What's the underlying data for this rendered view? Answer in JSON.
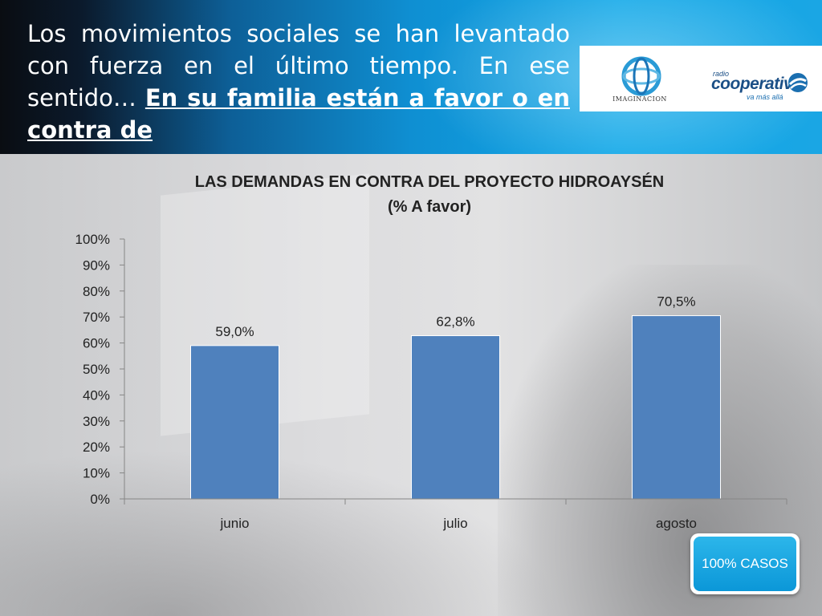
{
  "header": {
    "question_plain": "Los movimientos sociales se han levantado con fuerza en el último tiempo. En ese sentido… ",
    "question_emphasis": "En su familia están a favor o en contra de"
  },
  "logos": {
    "imaginacion": "IMAGINACION",
    "cooperativa_top": "radio",
    "cooperativa_name": "cooperativa",
    "cooperativa_tagline": "va más allá"
  },
  "badge": {
    "label": "100% CASOS"
  },
  "colors": {
    "bar": "#4f81bd",
    "axis": "#868686",
    "header_accent": "#0f8fd2"
  },
  "chart_data": {
    "type": "bar",
    "title": "LAS DEMANDAS EN CONTRA DEL PROYECTO HIDROAYSÉN",
    "subtitle": "(% A favor)",
    "categories": [
      "junio",
      "julio",
      "agosto"
    ],
    "values": [
      59.0,
      62.8,
      70.5
    ],
    "value_labels": [
      "59,0%",
      "62,8%",
      "70,5%"
    ],
    "ylim": [
      0,
      100
    ],
    "y_ticks": [
      0,
      10,
      20,
      30,
      40,
      50,
      60,
      70,
      80,
      90,
      100
    ],
    "y_tick_labels": [
      "0%",
      "10%",
      "20%",
      "30%",
      "40%",
      "50%",
      "60%",
      "70%",
      "80%",
      "90%",
      "100%"
    ],
    "grid": false,
    "legend": "none"
  }
}
